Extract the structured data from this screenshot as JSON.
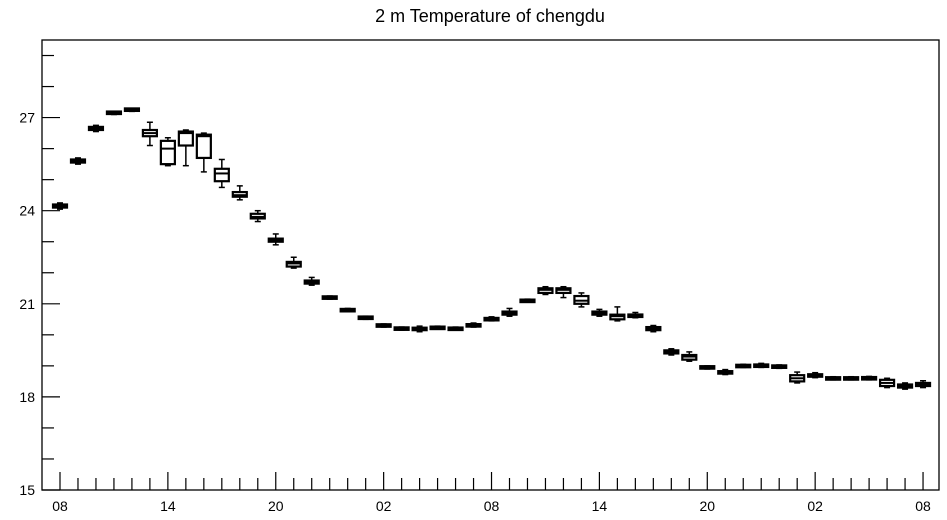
{
  "chart_data": {
    "type": "box",
    "title": "2 m Temperature of chengdu",
    "xlabel": "",
    "ylabel": "",
    "ylim": [
      15,
      29.5
    ],
    "y_ticks": [
      "15",
      "18",
      "21",
      "24",
      "27"
    ],
    "x_ticks": [
      "08",
      "14",
      "20",
      "02",
      "08",
      "14",
      "20",
      "02",
      "08"
    ],
    "time_step_hours": 1,
    "grid": false,
    "series": [
      {
        "x": 0,
        "min": 24.05,
        "q1": 24.1,
        "median": 24.15,
        "q3": 24.2,
        "max": 24.25
      },
      {
        "x": 1,
        "min": 25.5,
        "q1": 25.55,
        "median": 25.6,
        "q3": 25.65,
        "max": 25.7
      },
      {
        "x": 2,
        "min": 26.55,
        "q1": 26.6,
        "median": 26.65,
        "q3": 26.7,
        "max": 26.75
      },
      {
        "x": 3,
        "min": 27.1,
        "q1": 27.13,
        "median": 27.15,
        "q3": 27.18,
        "max": 27.2
      },
      {
        "x": 4,
        "min": 27.2,
        "q1": 27.23,
        "median": 27.25,
        "q3": 27.28,
        "max": 27.3
      },
      {
        "x": 5,
        "min": 26.1,
        "q1": 26.4,
        "median": 26.5,
        "q3": 26.6,
        "max": 26.85
      },
      {
        "x": 6,
        "min": 25.45,
        "q1": 25.5,
        "median": 26.0,
        "q3": 26.25,
        "max": 26.35
      },
      {
        "x": 7,
        "min": 25.45,
        "q1": 26.1,
        "median": 26.5,
        "q3": 26.55,
        "max": 26.6
      },
      {
        "x": 8,
        "min": 25.25,
        "q1": 25.7,
        "median": 26.4,
        "q3": 26.45,
        "max": 26.5
      },
      {
        "x": 9,
        "min": 24.75,
        "q1": 24.95,
        "median": 25.2,
        "q3": 25.35,
        "max": 25.65
      },
      {
        "x": 10,
        "min": 24.35,
        "q1": 24.45,
        "median": 24.5,
        "q3": 24.6,
        "max": 24.8
      },
      {
        "x": 11,
        "min": 23.65,
        "q1": 23.75,
        "median": 23.8,
        "q3": 23.9,
        "max": 24.0
      },
      {
        "x": 12,
        "min": 22.9,
        "q1": 23.0,
        "median": 23.05,
        "q3": 23.1,
        "max": 23.25
      },
      {
        "x": 13,
        "min": 22.15,
        "q1": 22.2,
        "median": 22.3,
        "q3": 22.35,
        "max": 22.5
      },
      {
        "x": 14,
        "min": 21.6,
        "q1": 21.65,
        "median": 21.7,
        "q3": 21.75,
        "max": 21.85
      },
      {
        "x": 15,
        "min": 21.15,
        "q1": 21.18,
        "median": 21.2,
        "q3": 21.22,
        "max": 21.25
      },
      {
        "x": 16,
        "min": 20.75,
        "q1": 20.77,
        "median": 20.8,
        "q3": 20.82,
        "max": 20.85
      },
      {
        "x": 17,
        "min": 20.5,
        "q1": 20.52,
        "median": 20.55,
        "q3": 20.58,
        "max": 20.6
      },
      {
        "x": 18,
        "min": 20.25,
        "q1": 20.28,
        "median": 20.3,
        "q3": 20.32,
        "max": 20.35
      },
      {
        "x": 19,
        "min": 20.15,
        "q1": 20.18,
        "median": 20.2,
        "q3": 20.22,
        "max": 20.25
      },
      {
        "x": 20,
        "min": 20.1,
        "q1": 20.15,
        "median": 20.2,
        "q3": 20.23,
        "max": 20.28
      },
      {
        "x": 21,
        "min": 20.18,
        "q1": 20.2,
        "median": 20.22,
        "q3": 20.25,
        "max": 20.28
      },
      {
        "x": 22,
        "min": 20.15,
        "q1": 20.17,
        "median": 20.2,
        "q3": 20.22,
        "max": 20.25
      },
      {
        "x": 23,
        "min": 20.25,
        "q1": 20.28,
        "median": 20.3,
        "q3": 20.33,
        "max": 20.38
      },
      {
        "x": 24,
        "min": 20.45,
        "q1": 20.48,
        "median": 20.5,
        "q3": 20.53,
        "max": 20.58
      },
      {
        "x": 25,
        "min": 20.6,
        "q1": 20.65,
        "median": 20.7,
        "q3": 20.75,
        "max": 20.85
      },
      {
        "x": 26,
        "min": 21.05,
        "q1": 21.07,
        "median": 21.1,
        "q3": 21.12,
        "max": 21.15
      },
      {
        "x": 27,
        "min": 21.3,
        "q1": 21.35,
        "median": 21.45,
        "q3": 21.5,
        "max": 21.55
      },
      {
        "x": 28,
        "min": 21.2,
        "q1": 21.35,
        "median": 21.45,
        "q3": 21.5,
        "max": 21.55
      },
      {
        "x": 29,
        "min": 20.9,
        "q1": 21.0,
        "median": 21.1,
        "q3": 21.25,
        "max": 21.35
      },
      {
        "x": 30,
        "min": 20.6,
        "q1": 20.65,
        "median": 20.7,
        "q3": 20.75,
        "max": 20.82
      },
      {
        "x": 31,
        "min": 20.45,
        "q1": 20.5,
        "median": 20.6,
        "q3": 20.65,
        "max": 20.9
      },
      {
        "x": 32,
        "min": 20.55,
        "q1": 20.58,
        "median": 20.6,
        "q3": 20.65,
        "max": 20.72
      },
      {
        "x": 33,
        "min": 20.1,
        "q1": 20.15,
        "median": 20.2,
        "q3": 20.25,
        "max": 20.3
      },
      {
        "x": 34,
        "min": 19.35,
        "q1": 19.4,
        "median": 19.45,
        "q3": 19.5,
        "max": 19.55
      },
      {
        "x": 35,
        "min": 19.15,
        "q1": 19.2,
        "median": 19.3,
        "q3": 19.35,
        "max": 19.45
      },
      {
        "x": 36,
        "min": 18.9,
        "q1": 18.93,
        "median": 18.95,
        "q3": 18.97,
        "max": 19.0
      },
      {
        "x": 37,
        "min": 18.72,
        "q1": 18.75,
        "median": 18.8,
        "q3": 18.83,
        "max": 18.88
      },
      {
        "x": 38,
        "min": 18.95,
        "q1": 18.97,
        "median": 19.0,
        "q3": 19.02,
        "max": 19.05
      },
      {
        "x": 39,
        "min": 18.95,
        "q1": 18.98,
        "median": 19.0,
        "q3": 19.03,
        "max": 19.08
      },
      {
        "x": 40,
        "min": 18.92,
        "q1": 18.95,
        "median": 18.97,
        "q3": 19.0,
        "max": 19.03
      },
      {
        "x": 41,
        "min": 18.45,
        "q1": 18.5,
        "median": 18.6,
        "q3": 18.7,
        "max": 18.8
      },
      {
        "x": 42,
        "min": 18.62,
        "q1": 18.65,
        "median": 18.7,
        "q3": 18.73,
        "max": 18.78
      },
      {
        "x": 43,
        "min": 18.55,
        "q1": 18.57,
        "median": 18.6,
        "q3": 18.62,
        "max": 18.65
      },
      {
        "x": 44,
        "min": 18.55,
        "q1": 18.57,
        "median": 18.6,
        "q3": 18.62,
        "max": 18.65
      },
      {
        "x": 45,
        "min": 18.55,
        "q1": 18.58,
        "median": 18.6,
        "q3": 18.62,
        "max": 18.66
      },
      {
        "x": 46,
        "min": 18.3,
        "q1": 18.35,
        "median": 18.45,
        "q3": 18.55,
        "max": 18.6
      },
      {
        "x": 47,
        "min": 18.25,
        "q1": 18.3,
        "median": 18.35,
        "q3": 18.4,
        "max": 18.45
      },
      {
        "x": 48,
        "min": 18.3,
        "q1": 18.35,
        "median": 18.4,
        "q3": 18.45,
        "max": 18.52
      }
    ]
  }
}
